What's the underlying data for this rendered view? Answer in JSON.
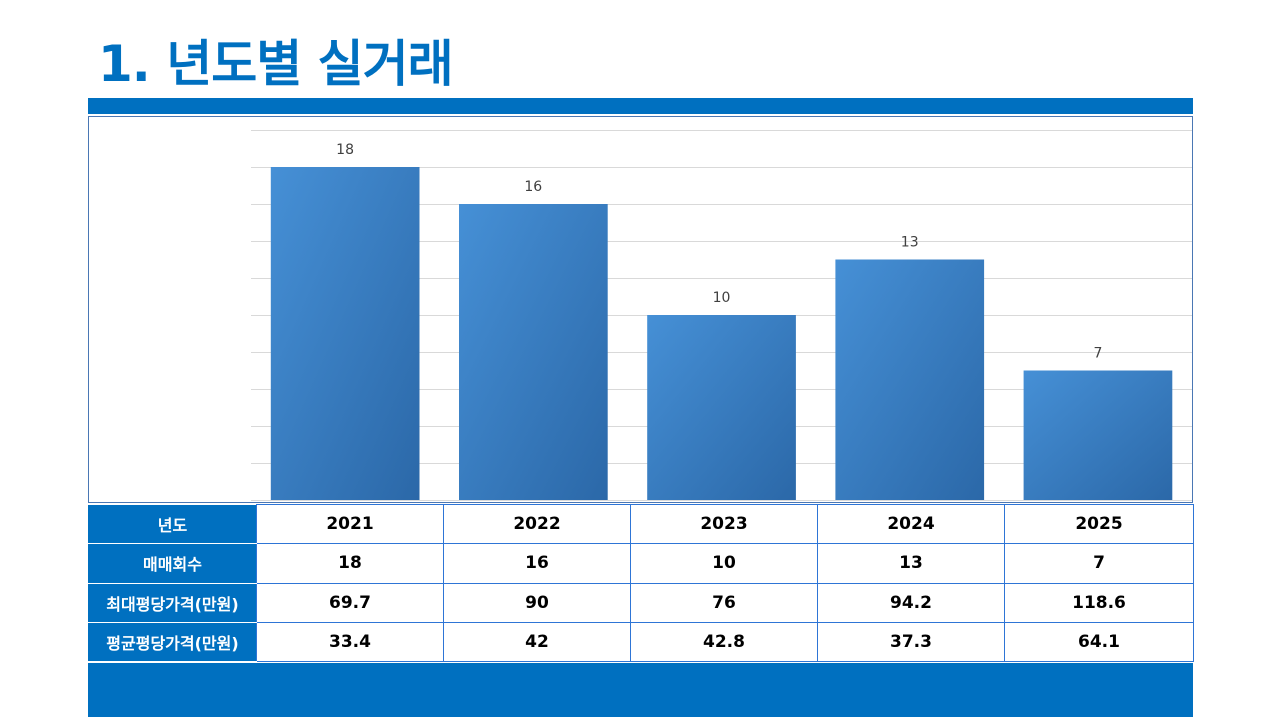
{
  "page": {
    "title": "1. 년도별 실거래"
  },
  "colors": {
    "accent": "#0070c0",
    "bar_light": "#3f8bd1",
    "bar_dark": "#2c6aaa",
    "grid": "#d9d9d9",
    "label": "#404040"
  },
  "chart_data": {
    "type": "bar",
    "categories": [
      "2021",
      "2022",
      "2023",
      "2024",
      "2025"
    ],
    "values": [
      18,
      16,
      10,
      13,
      7
    ],
    "ylim": [
      0,
      20
    ],
    "gridline_step": 2,
    "grid": true,
    "data_labels": true,
    "title": "",
    "xlabel": "",
    "ylabel": ""
  },
  "table": {
    "rows": [
      {
        "label": "년도",
        "values": [
          "2021",
          "2022",
          "2023",
          "2024",
          "2025"
        ]
      },
      {
        "label": "매매회수",
        "values": [
          "18",
          "16",
          "10",
          "13",
          "7"
        ]
      },
      {
        "label": "최대평당가격(만원)",
        "values": [
          "69.7",
          "90",
          "76",
          "94.2",
          "118.6"
        ]
      },
      {
        "label": "평균평당가격(만원)",
        "values": [
          "33.4",
          "42",
          "42.8",
          "37.3",
          "64.1"
        ]
      }
    ]
  }
}
